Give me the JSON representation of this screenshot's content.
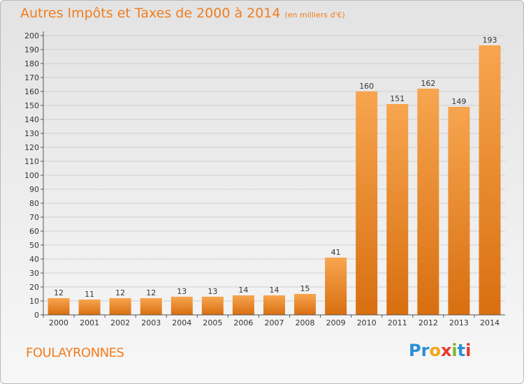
{
  "header": {
    "title": "Autres Impôts et Taxes de 2000 à 2014",
    "subtitle": "(en milliers d'€)"
  },
  "footer": {
    "commune": "FOULAYRONNES",
    "brand_letters": [
      "P",
      "r",
      "o",
      "x",
      "i",
      "t",
      "i"
    ],
    "brand_colors": [
      "#2a8fd6",
      "#2a8fd6",
      "#f2a51a",
      "#e8392a",
      "#7ab829",
      "#2a8fd6",
      "#e8392a"
    ]
  },
  "chart_data": {
    "type": "bar",
    "categories": [
      "2000",
      "2001",
      "2002",
      "2003",
      "2004",
      "2005",
      "2006",
      "2007",
      "2008",
      "2009",
      "2010",
      "2011",
      "2012",
      "2013",
      "2014"
    ],
    "values": [
      12,
      11,
      12,
      12,
      13,
      13,
      14,
      14,
      15,
      41,
      160,
      151,
      162,
      149,
      193
    ],
    "ylim": [
      0,
      200
    ],
    "yticks": [
      0,
      10,
      20,
      30,
      40,
      50,
      60,
      70,
      80,
      90,
      100,
      110,
      120,
      130,
      140,
      150,
      160,
      170,
      180,
      190,
      200
    ],
    "grid": true,
    "bar_color_light": "#f7a54f",
    "bar_color_dark": "#d86f10"
  }
}
